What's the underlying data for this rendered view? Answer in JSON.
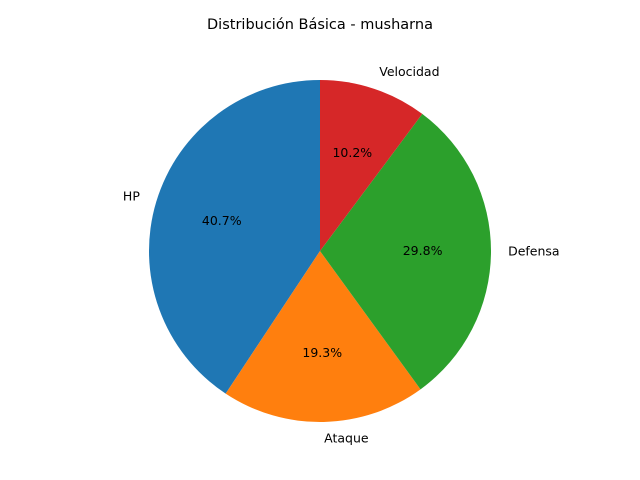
{
  "chart_data": {
    "type": "pie",
    "title": "Distribución Básica - musharna",
    "start_angle_deg": 90,
    "direction": "counterclockwise",
    "slices": [
      {
        "label": "HP",
        "percent": 40.7,
        "percent_label": "40.7%",
        "color": "#1f77b4"
      },
      {
        "label": "Ataque",
        "percent": 19.3,
        "percent_label": "19.3%",
        "color": "#ff7f0e"
      },
      {
        "label": "Defensa",
        "percent": 29.8,
        "percent_label": "29.8%",
        "color": "#2ca02c"
      },
      {
        "label": "Velocidad",
        "percent": 10.2,
        "percent_label": "10.2%",
        "color": "#d62728"
      }
    ]
  }
}
